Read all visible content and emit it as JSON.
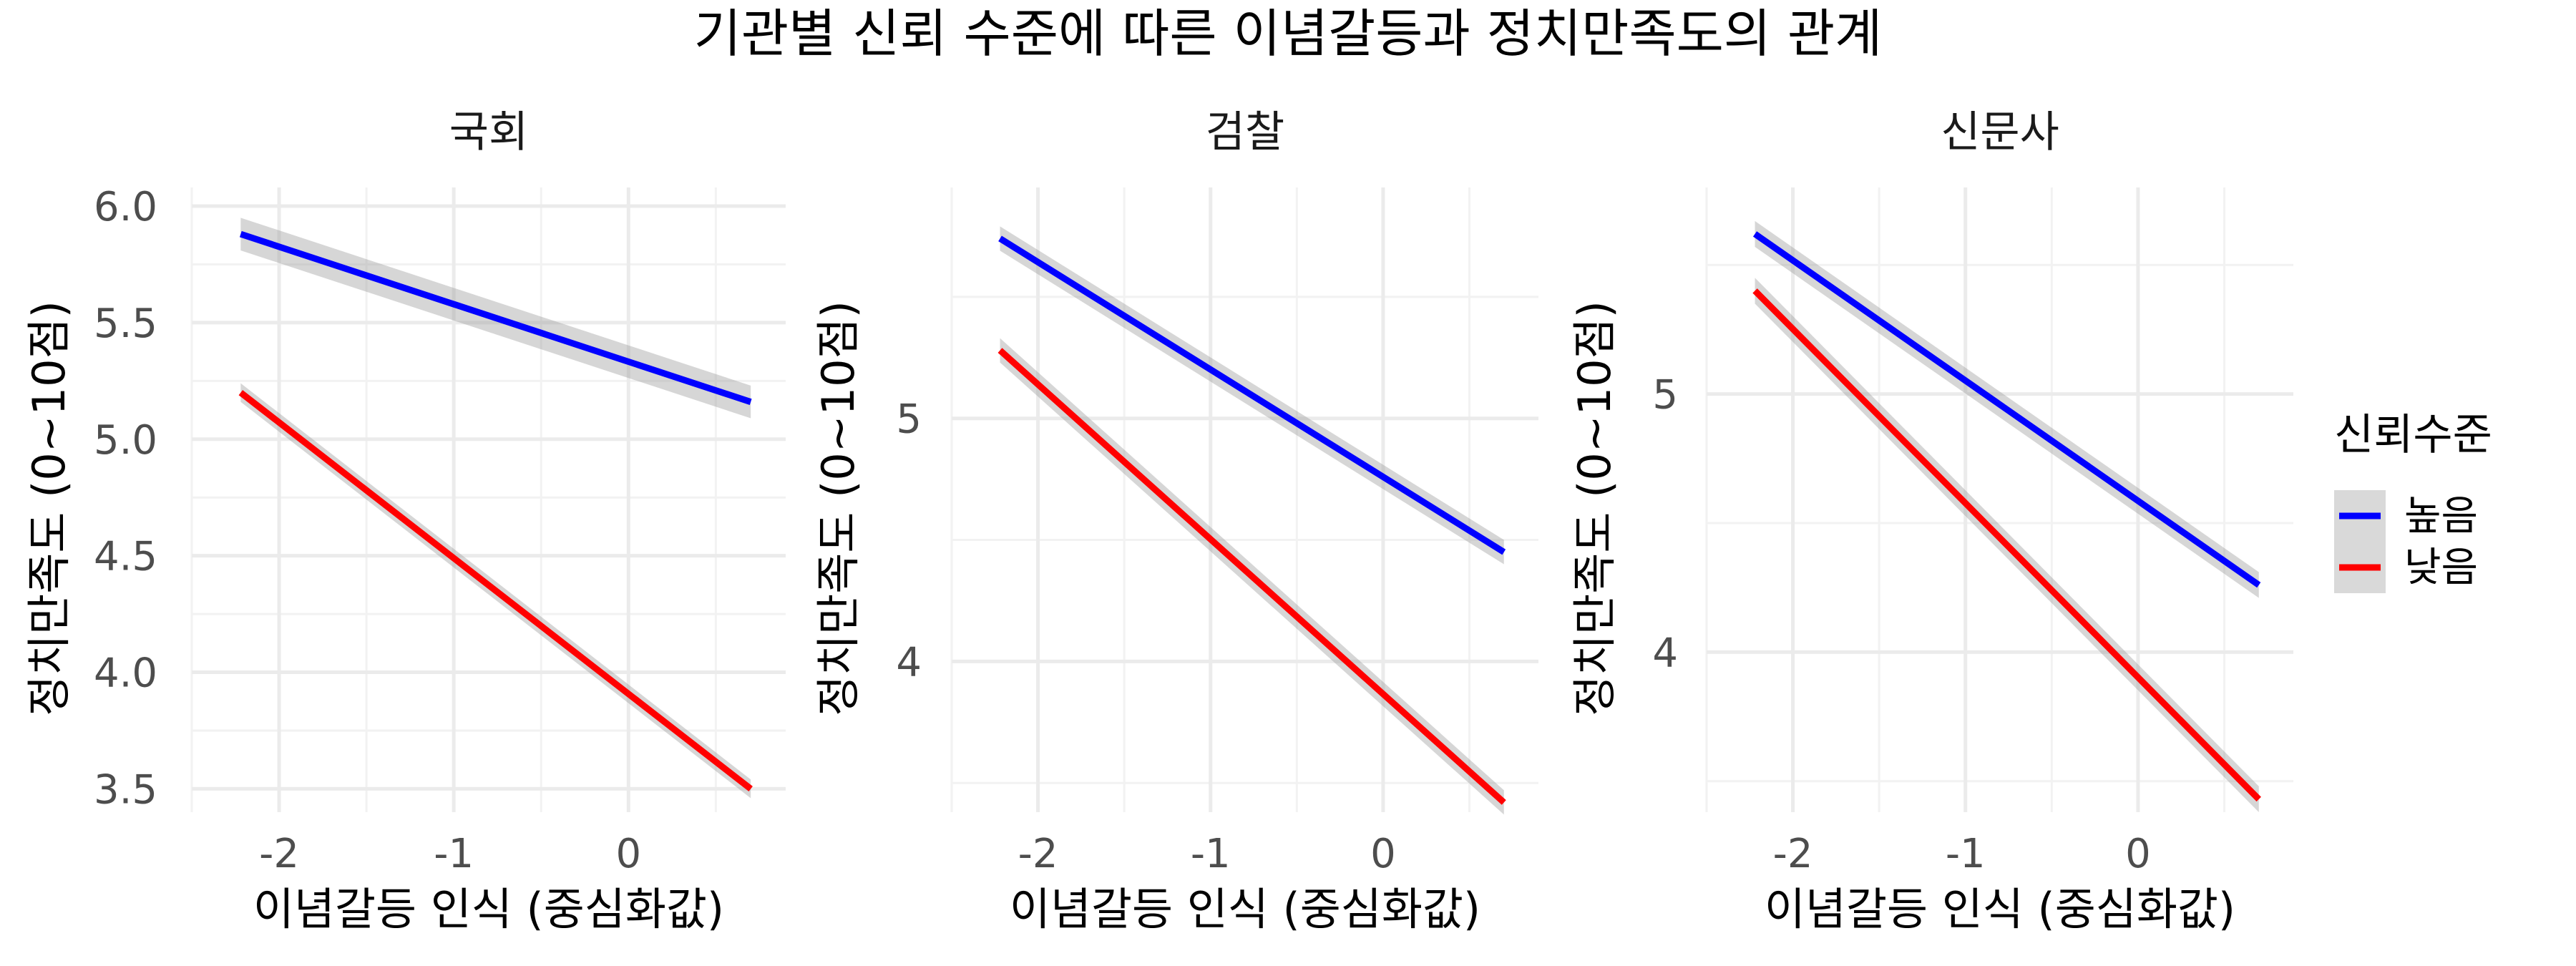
{
  "chart_data": {
    "type": "line",
    "title": "기관별 신뢰 수준에 따른 이념갈등과 정치만족도의 관계",
    "xlabel": "이념갈등 인식 (중심화값)",
    "ylabel": "정치만족도 (0~10점)",
    "grid": true,
    "legend": {
      "title": "신뢰수준",
      "position": "right",
      "entries": [
        {
          "label": "높음",
          "color": "#0000ff"
        },
        {
          "label": "낮음",
          "color": "#ff0000"
        }
      ]
    },
    "panels": [
      {
        "strip": "국회",
        "xlim": [
          -2.5,
          0.9
        ],
        "ylim": [
          3.4,
          6.08
        ],
        "x_ticks": [
          "-2",
          "-1",
          "0"
        ],
        "x_tick_values": [
          -2,
          -1,
          0
        ],
        "y_ticks": [
          "6.0",
          "5.5",
          "5.0",
          "4.5",
          "4.0",
          "3.5"
        ],
        "y_tick_values": [
          6.0,
          5.5,
          5.0,
          4.5,
          4.0,
          3.5
        ],
        "series": [
          {
            "level": "높음",
            "x": [
              -2.22,
              0.7
            ],
            "y": [
              5.88,
              5.16
            ],
            "band": 0.07
          },
          {
            "level": "낮음",
            "x": [
              -2.22,
              0.7
            ],
            "y": [
              5.2,
              3.5
            ],
            "band": 0.04
          }
        ]
      },
      {
        "strip": "검찰",
        "xlim": [
          -2.5,
          0.9
        ],
        "ylim": [
          3.38,
          5.95
        ],
        "x_ticks": [
          "-2",
          "-1",
          "0"
        ],
        "x_tick_values": [
          -2,
          -1,
          0
        ],
        "y_ticks": [
          "5",
          "4"
        ],
        "y_tick_values": [
          5,
          4
        ],
        "series": [
          {
            "level": "높음",
            "x": [
              -2.22,
              0.7
            ],
            "y": [
              5.74,
              4.45
            ],
            "band": 0.05
          },
          {
            "level": "낮음",
            "x": [
              -2.22,
              0.7
            ],
            "y": [
              5.28,
              3.42
            ],
            "band": 0.05
          }
        ]
      },
      {
        "strip": "신문사",
        "xlim": [
          -2.5,
          0.9
        ],
        "ylim": [
          3.38,
          5.8
        ],
        "x_ticks": [
          "-2",
          "-1",
          "0"
        ],
        "x_tick_values": [
          -2,
          -1,
          0
        ],
        "y_ticks": [
          "5",
          "4"
        ],
        "y_tick_values": [
          5,
          4
        ],
        "series": [
          {
            "level": "높음",
            "x": [
              -2.22,
              0.7
            ],
            "y": [
              5.62,
              4.26
            ],
            "band": 0.05
          },
          {
            "level": "낮음",
            "x": [
              -2.22,
              0.7
            ],
            "y": [
              5.4,
              3.43
            ],
            "band": 0.05
          }
        ]
      }
    ]
  }
}
